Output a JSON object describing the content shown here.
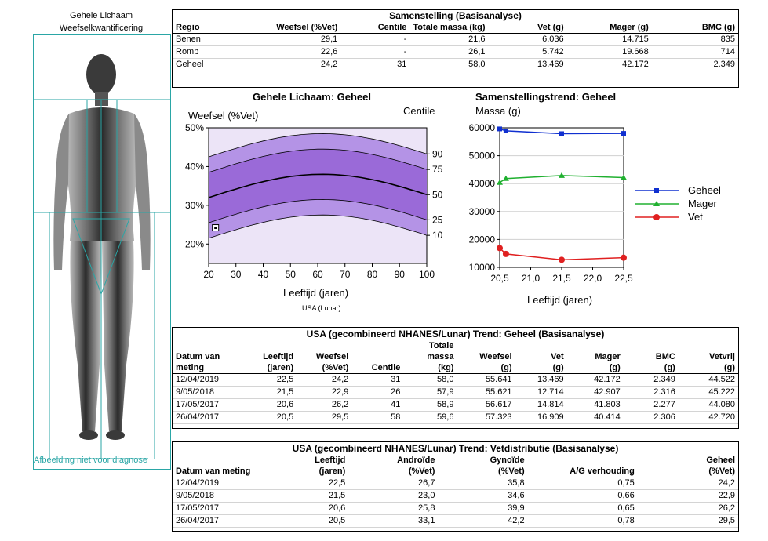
{
  "left_panel": {
    "title_line1": "Gehele Lichaam",
    "title_line2": "Weefselkwantificering",
    "watermark": "Afbeelding niet voor diagnose"
  },
  "composition": {
    "title": "Samenstelling (Basisanalyse)",
    "headers": [
      "Regio",
      "Weefsel (%Vet)",
      "Centile",
      "Totale massa (kg)",
      "Vet (g)",
      "Mager (g)",
      "BMC (g)"
    ],
    "rows": [
      [
        "Benen",
        "29,1",
        "-",
        "21,6",
        "6.036",
        "14.715",
        "835"
      ],
      [
        "Romp",
        "22,6",
        "-",
        "26,1",
        "5.742",
        "19.668",
        "714"
      ],
      [
        "Geheel",
        "24,2",
        "31",
        "58,0",
        "13.469",
        "42.172",
        "2.349"
      ]
    ]
  },
  "centile_chart": {
    "title": "Gehele Lichaam: Geheel",
    "ylabel": "Weefsel (%Vet)",
    "right_label": "Centile",
    "xlabel": "Leeftijd (jaren)",
    "reference": "USA (Lunar)",
    "y_ticks": [
      "50%",
      "40%",
      "30%",
      "20%"
    ],
    "x_ticks": [
      "20",
      "30",
      "40",
      "50",
      "60",
      "70",
      "80",
      "90",
      "100"
    ],
    "centile_ticks": [
      "90",
      "75",
      "50",
      "25",
      "10"
    ]
  },
  "trend_chart": {
    "title": "Samenstellingstrend: Geheel",
    "ylabel": "Massa (g)",
    "xlabel": "Leeftijd (jaren)",
    "y_ticks": [
      "60000",
      "50000",
      "40000",
      "30000",
      "20000",
      "10000"
    ],
    "x_ticks": [
      "20,5",
      "21,0",
      "21,5",
      "22,0",
      "22,5"
    ],
    "legend": [
      "Geheel",
      "Mager",
      "Vet"
    ],
    "colors": {
      "geheel": "#1030d0",
      "mager": "#20b030",
      "vet": "#e02020"
    }
  },
  "chart_data": [
    {
      "type": "scatter",
      "title": "Gehele Lichaam: Geheel",
      "xlabel": "Leeftijd (jaren)",
      "ylabel": "Weefsel (%Vet)",
      "xlim": [
        20,
        100
      ],
      "ylim": [
        15,
        50
      ],
      "series": [
        {
          "values": [
            {
              "x": 22.5,
              "y": 24.2
            }
          ]
        }
      ]
    },
    {
      "type": "line",
      "title": "Samenstellingstrend: Geheel",
      "xlabel": "Leeftijd (jaren)",
      "ylabel": "Massa (g)",
      "xlim": [
        20.5,
        22.5
      ],
      "ylim": [
        10000,
        60000
      ],
      "x": [
        20.5,
        20.6,
        21.5,
        22.5
      ],
      "series": [
        {
          "name": "Geheel",
          "values": [
            59600,
            58900,
            57900,
            58000
          ]
        },
        {
          "name": "Mager",
          "values": [
            40414,
            41803,
            42907,
            42172
          ]
        },
        {
          "name": "Vet",
          "values": [
            16909,
            14814,
            12714,
            13469
          ]
        }
      ]
    }
  ],
  "trend_table": {
    "title": "USA (gecombineerd NHANES/Lunar) Trend: Geheel (Basisanalyse)",
    "headers": [
      [
        "Datum van",
        "meting"
      ],
      [
        "Leeftijd",
        "(jaren)"
      ],
      [
        "Weefsel",
        "(%Vet)"
      ],
      [
        "",
        "Centile"
      ],
      [
        "Totale",
        "massa",
        "(kg)"
      ],
      [
        "Weefsel",
        "(g)"
      ],
      [
        "Vet",
        "(g)"
      ],
      [
        "Mager",
        "(g)"
      ],
      [
        "BMC",
        "(g)"
      ],
      [
        "Vetvrij",
        "(g)"
      ]
    ],
    "rows": [
      [
        "12/04/2019",
        "22,5",
        "24,2",
        "31",
        "58,0",
        "55.641",
        "13.469",
        "42.172",
        "2.349",
        "44.522"
      ],
      [
        "9/05/2018",
        "21,5",
        "22,9",
        "26",
        "57,9",
        "55.621",
        "12.714",
        "42.907",
        "2.316",
        "45.222"
      ],
      [
        "17/05/2017",
        "20,6",
        "26,2",
        "41",
        "58,9",
        "56.617",
        "14.814",
        "41.803",
        "2.277",
        "44.080"
      ],
      [
        "26/04/2017",
        "20,5",
        "29,5",
        "58",
        "59,6",
        "57.323",
        "16.909",
        "40.414",
        "2.306",
        "42.720"
      ]
    ]
  },
  "fat_table": {
    "title": "USA (gecombineerd NHANES/Lunar) Trend:  Vetdistributie (Basisanalyse)",
    "headers": [
      [
        "Datum van meting"
      ],
      [
        "Leeftijd",
        "(jaren)"
      ],
      [
        "Androïde",
        "(%Vet)"
      ],
      [
        "Gynoïde",
        "(%Vet)"
      ],
      [
        "A/G verhouding"
      ],
      [
        "Geheel",
        "(%Vet)"
      ]
    ],
    "rows": [
      [
        "12/04/2019",
        "22,5",
        "26,7",
        "35,8",
        "0,75",
        "24,2"
      ],
      [
        "9/05/2018",
        "21,5",
        "23,0",
        "34,6",
        "0,66",
        "22,9"
      ],
      [
        "17/05/2017",
        "20,6",
        "25,8",
        "39,9",
        "0,65",
        "26,2"
      ],
      [
        "26/04/2017",
        "20,5",
        "33,1",
        "42,2",
        "0,78",
        "29,5"
      ]
    ]
  }
}
